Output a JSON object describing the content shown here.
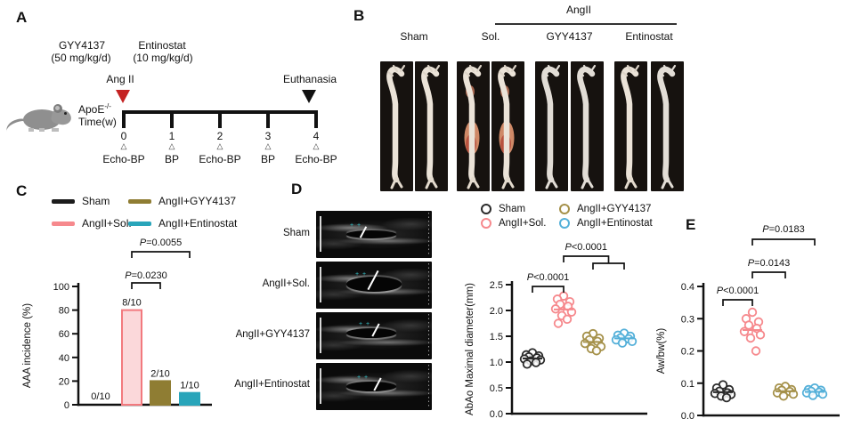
{
  "figure": {
    "panel_labels": {
      "A": "A",
      "B": "B",
      "C": "C",
      "D": "D",
      "E": "E"
    }
  },
  "panel_a": {
    "drug1_name": "GYY4137",
    "drug1_dose": "(50 mg/kg/d)",
    "drug2_name": "Entinostat",
    "drug2_dose": "(10 mg/kg/d)",
    "angii_label": "Ang II",
    "euthanasia_label": "Euthanasia",
    "strain_label": "ApoE",
    "strain_superscript": "-/-",
    "timeline_label": "Time(w)",
    "weeks": [
      "0",
      "1",
      "2",
      "3",
      "4"
    ],
    "events": [
      "Echo-BP",
      "BP",
      "Echo-BP",
      "BP",
      "Echo-BP"
    ]
  },
  "panel_b": {
    "group_header": "AngII",
    "columns": [
      "Sham",
      "Sol.",
      "GYY4137",
      "Entinostat"
    ],
    "photo_variants": [
      "normal",
      "normal",
      "aaa",
      "aaa",
      "pale",
      "pale",
      "normal",
      "pale"
    ]
  },
  "panel_c": {
    "legend": [
      {
        "label": "Sham",
        "color": "#1c1c1c"
      },
      {
        "label": "AngII+Sol.",
        "color": "#f6898d"
      },
      {
        "label": "AngII+GYY4137",
        "color": "#8f7d33"
      },
      {
        "label": "AngII+Entinostat",
        "color": "#29a5ba"
      }
    ]
  },
  "panel_d": {
    "rows": [
      "Sham",
      "AngII+Sol.",
      "AngII+GYY4137",
      "AngII+Entinostat"
    ],
    "legend": [
      {
        "label": "Sham",
        "color": "#2b2b2b"
      },
      {
        "label": "AngII+Sol.",
        "color": "#f6898d"
      },
      {
        "label": "AngII+GYY4137",
        "color": "#a5914a"
      },
      {
        "label": "AngII+Entinostat",
        "color": "#54b0d9"
      }
    ]
  },
  "chart_data": [
    {
      "id": "aaa-incidence",
      "type": "bar",
      "panel": "C",
      "title": "",
      "xlabel": "",
      "ylabel": "AAA incidence (%)",
      "ylim": [
        0,
        100
      ],
      "yticks": [
        "0",
        "20",
        "40",
        "60",
        "80",
        "100"
      ],
      "categories": [
        "Sham",
        "AngII+Sol.",
        "AngII+GYY4137",
        "AngII+Entinostat"
      ],
      "values": [
        0,
        80,
        20,
        10
      ],
      "bar_labels": [
        "0/10",
        "8/10",
        "2/10",
        "1/10"
      ],
      "bar_fill": [
        "#1c1c1c",
        "#fbd8da",
        "#8f7d33",
        "#29a5ba"
      ],
      "bar_stroke": [
        "#1c1c1c",
        "#f2797e",
        "#8f7d33",
        "#29a5ba"
      ],
      "grid": false,
      "significance": [
        {
          "label": "P=0.0230",
          "from": 1,
          "to": 2
        },
        {
          "label": "P=0.0055",
          "from": 1,
          "to": 3
        }
      ]
    },
    {
      "id": "abao-diameter",
      "type": "scatter",
      "panel": "D",
      "ylabel": "AbAo Maximal diameter(mm)",
      "ylim": [
        0,
        2.5
      ],
      "yticks": [
        "0.0",
        "0.5",
        "1.0",
        "1.5",
        "2.0",
        "2.5"
      ],
      "grid": false,
      "groups": [
        {
          "name": "Sham",
          "color": "#2b2b2b",
          "values": [
            1.18,
            1.14,
            1.12,
            1.1,
            1.08,
            1.06,
            1.04,
            1.02,
            0.99,
            0.96
          ],
          "mean": 1.07,
          "sem": 0.02
        },
        {
          "name": "AngII+Sol.",
          "color": "#f6898d",
          "values": [
            2.28,
            2.22,
            2.17,
            2.12,
            2.08,
            2.03,
            1.97,
            1.9,
            1.83,
            1.75
          ],
          "mean": 2.02,
          "sem": 0.06
        },
        {
          "name": "AngII+GYY4137",
          "color": "#a5914a",
          "values": [
            1.55,
            1.5,
            1.46,
            1.43,
            1.4,
            1.36,
            1.3,
            1.26,
            1.22
          ],
          "mean": 1.39,
          "sem": 0.035
        },
        {
          "name": "AngII+Entinostat",
          "color": "#54b0d9",
          "values": [
            1.56,
            1.52,
            1.5,
            1.47,
            1.45,
            1.43,
            1.4,
            1.37
          ],
          "mean": 1.46,
          "sem": 0.022
        }
      ],
      "significance": [
        {
          "label": "P<0.0001",
          "from": 0,
          "to": 1
        },
        {
          "label": "P<0.0001",
          "from": 1,
          "fork": [
            2,
            3
          ]
        }
      ]
    },
    {
      "id": "aw-bw",
      "type": "scatter",
      "panel": "E",
      "ylabel": "Aw/bw(%)",
      "ylim": [
        0,
        0.4
      ],
      "yticks": [
        "0.0",
        "0.1",
        "0.2",
        "0.3",
        "0.4"
      ],
      "grid": false,
      "groups": [
        {
          "name": "Sham",
          "color": "#2b2b2b",
          "values": [
            0.095,
            0.085,
            0.08,
            0.075,
            0.07,
            0.068,
            0.065,
            0.06,
            0.055
          ],
          "mean": 0.072,
          "sem": 0.004
        },
        {
          "name": "AngII+Sol.",
          "color": "#f6898d",
          "values": [
            0.32,
            0.3,
            0.29,
            0.28,
            0.27,
            0.26,
            0.25,
            0.24,
            0.2
          ],
          "mean": 0.265,
          "sem": 0.012
        },
        {
          "name": "AngII+GYY4137",
          "color": "#a5914a",
          "values": [
            0.09,
            0.085,
            0.08,
            0.078,
            0.074,
            0.07,
            0.066,
            0.06
          ],
          "mean": 0.075,
          "sem": 0.004
        },
        {
          "name": "AngII+Entinostat",
          "color": "#54b0d9",
          "values": [
            0.085,
            0.08,
            0.078,
            0.075,
            0.072,
            0.07,
            0.066,
            0.062
          ],
          "mean": 0.073,
          "sem": 0.003
        }
      ],
      "significance": [
        {
          "label": "P<0.0001",
          "from": 0,
          "to": 1
        },
        {
          "label": "P=0.0143",
          "from": 1,
          "to": 2
        },
        {
          "label": "P=0.0183",
          "from": 1,
          "to": 3
        }
      ]
    }
  ]
}
